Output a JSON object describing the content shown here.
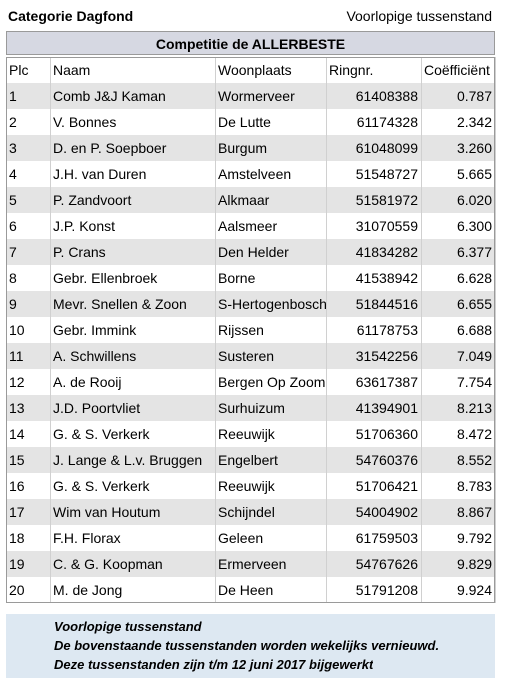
{
  "header": {
    "left": "Categorie Dagfond",
    "right": "Voorlopige tussenstand"
  },
  "table": {
    "title": "Competitie de ALLERBESTE",
    "columns": [
      "Plc",
      "Naam",
      "Woonplaats",
      "Ringnr.",
      "Coëfficiënt"
    ],
    "rows": [
      [
        "1",
        "Comb J&J Kaman",
        "Wormerveer",
        "61408388",
        "0.787"
      ],
      [
        "2",
        "V. Bonnes",
        "De Lutte",
        "61174328",
        "2.342"
      ],
      [
        "3",
        "D. en P. Soepboer",
        "Burgum",
        "61048099",
        "3.260"
      ],
      [
        "4",
        "J.H. van Duren",
        "Amstelveen",
        "51548727",
        "5.665"
      ],
      [
        "5",
        "P. Zandvoort",
        "Alkmaar",
        "51581972",
        "6.020"
      ],
      [
        "6",
        "J.P. Konst",
        "Aalsmeer",
        "31070559",
        "6.300"
      ],
      [
        "7",
        "P. Crans",
        "Den Helder",
        "41834282",
        "6.377"
      ],
      [
        "8",
        "Gebr. Ellenbroek",
        "Borne",
        "41538942",
        "6.628"
      ],
      [
        "9",
        "Mevr. Snellen & Zoon",
        "S-Hertogenbosch",
        "51844516",
        "6.655"
      ],
      [
        "10",
        "Gebr. Immink",
        "Rijssen",
        "61178753",
        "6.688"
      ],
      [
        "11",
        "A. Schwillens",
        "Susteren",
        "31542256",
        "7.049"
      ],
      [
        "12",
        "A. de Rooij",
        "Bergen Op Zoom",
        "63617387",
        "7.754"
      ],
      [
        "13",
        "J.D. Poortvliet",
        "Surhuizum",
        "41394901",
        "8.213"
      ],
      [
        "14",
        "G. & S. Verkerk",
        "Reeuwijk",
        "51706360",
        "8.472"
      ],
      [
        "15",
        "J. Lange & L.v. Bruggen",
        "Engelbert",
        "54760376",
        "8.552"
      ],
      [
        "16",
        "G. & S. Verkerk",
        "Reeuwijk",
        "51706421",
        "8.783"
      ],
      [
        "17",
        "Wim van Houtum",
        "Schijndel",
        "54004902",
        "8.867"
      ],
      [
        "18",
        "F.H. Florax",
        "Geleen",
        "61759503",
        "9.792"
      ],
      [
        "19",
        "C. & G. Koopman",
        "Ermerveen",
        "54767626",
        "9.829"
      ],
      [
        "20",
        "M. de Jong",
        "De Heen",
        "51791208",
        "9.924"
      ]
    ]
  },
  "footer": {
    "lines": [
      "Voorlopige tussenstand",
      "De bovenstaande tussenstanden worden wekelijks vernieuwd.",
      "Deze tussenstanden zijn t/m 12 juni 2017 bijgewerkt"
    ]
  }
}
